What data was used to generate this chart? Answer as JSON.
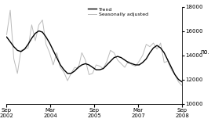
{
  "ylabel": "no.",
  "ylim": [
    10000,
    18000
  ],
  "yticks": [
    10000,
    12000,
    14000,
    16000,
    18000
  ],
  "xtick_labels": [
    "Sep\n2002",
    "Mar\n2004",
    "Sep\n2005",
    "Mar\n2007",
    "Sep\n2008"
  ],
  "trend_color": "#000000",
  "seasonal_color": "#bbbbbb",
  "trend_linewidth": 1.0,
  "seasonal_linewidth": 0.7,
  "legend_items": [
    "Trend",
    "Seasonally adjusted"
  ],
  "background_color": "#ffffff",
  "trend_data": [
    15500,
    15100,
    14700,
    14400,
    14300,
    14500,
    14900,
    15400,
    15800,
    16000,
    15900,
    15500,
    15000,
    14400,
    13800,
    13200,
    12800,
    12500,
    12500,
    12700,
    13000,
    13200,
    13300,
    13200,
    13000,
    12800,
    12800,
    12900,
    13200,
    13500,
    13800,
    13900,
    13800,
    13600,
    13400,
    13300,
    13200,
    13200,
    13400,
    13700,
    14200,
    14600,
    14800,
    14600,
    14200,
    13600,
    13000,
    12400,
    12000,
    11800
  ],
  "seasonal_data": [
    15700,
    17700,
    13700,
    12500,
    14400,
    14500,
    14600,
    16500,
    15200,
    16500,
    16900,
    14900,
    14200,
    13200,
    14200,
    13000,
    12600,
    11900,
    12500,
    13000,
    12900,
    14200,
    13600,
    12400,
    12500,
    13200,
    13100,
    12900,
    13500,
    14400,
    14200,
    13600,
    13300,
    13000,
    13500,
    13200,
    13100,
    13500,
    14000,
    14900,
    14700,
    15000,
    14500,
    15000,
    13400,
    13500,
    12800,
    12400,
    11800,
    11500
  ],
  "total_months": 72,
  "tick_months": [
    0,
    18,
    36,
    54,
    72
  ]
}
